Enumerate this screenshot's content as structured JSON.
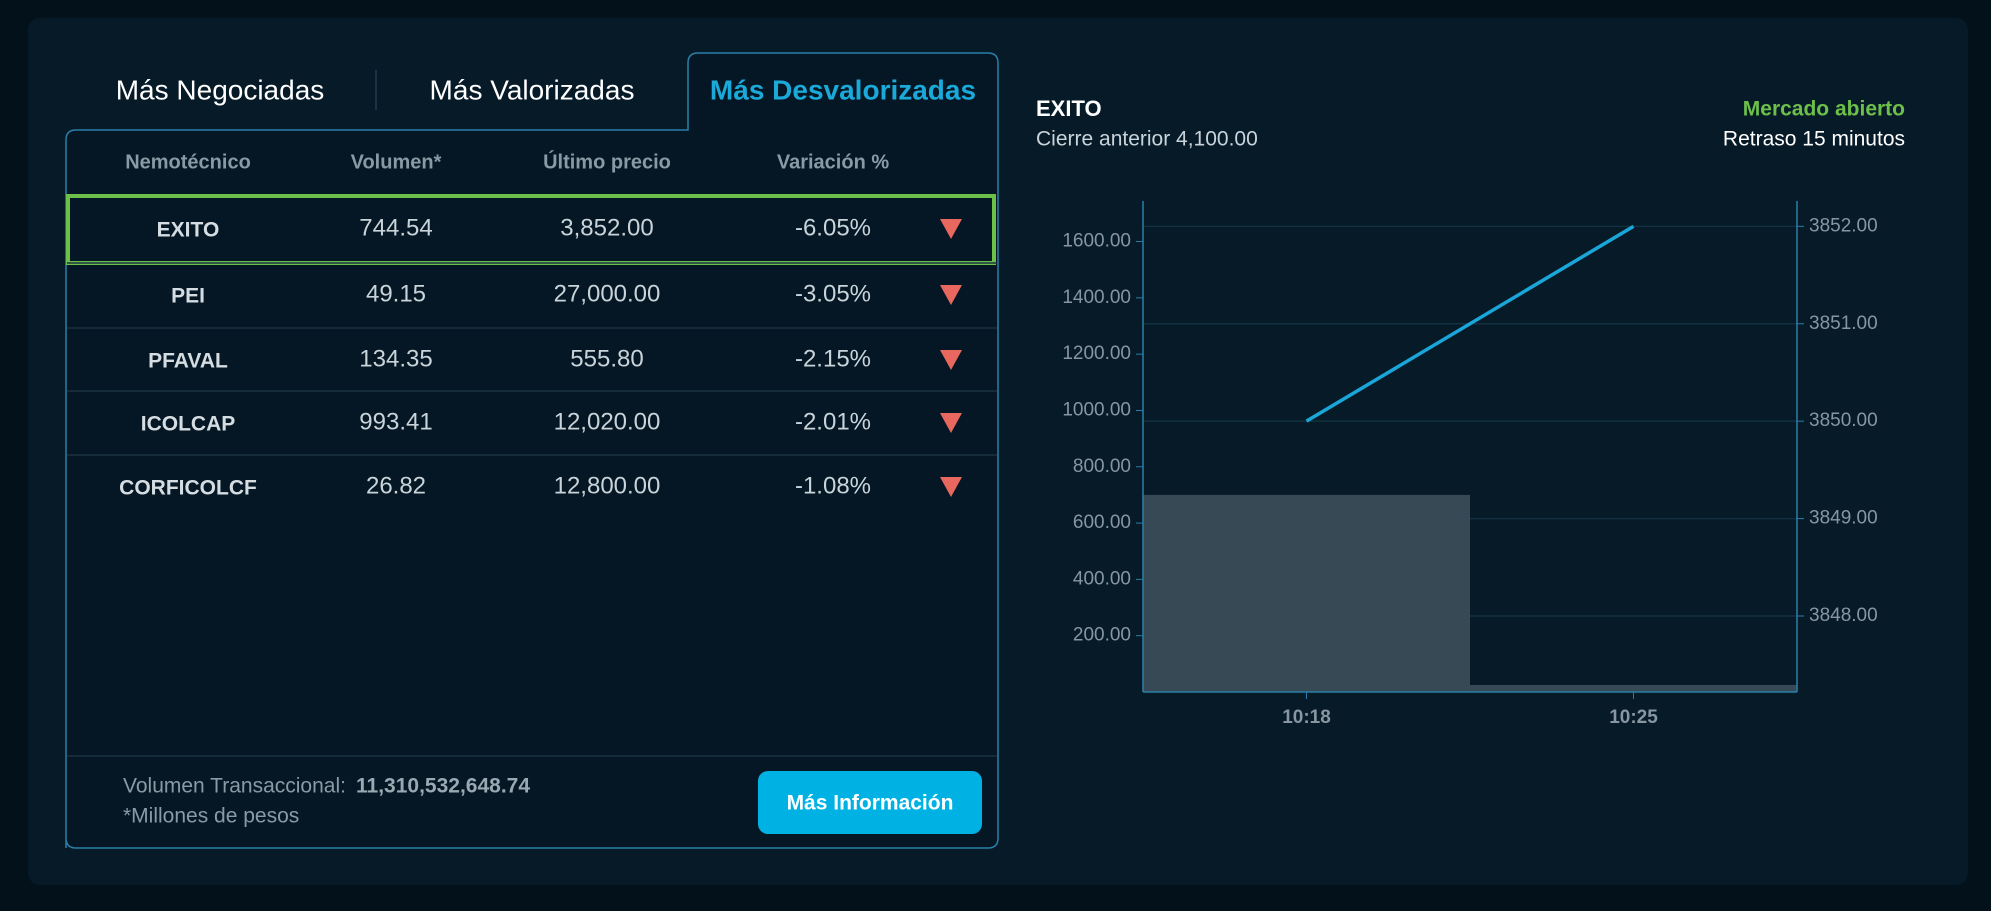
{
  "tabs": [
    "Más Negociadas",
    "Más Valorizadas",
    "Más Desvalorizadas"
  ],
  "active_tab": 2,
  "table": {
    "columns": [
      "Nemotécnico",
      "Volumen*",
      "Último precio",
      "Variación %"
    ],
    "rows": [
      [
        "EXITO",
        "744.54",
        "3,852.00",
        "-6.05%"
      ],
      [
        "PEI",
        "49.15",
        "27,000.00",
        "-3.05%"
      ],
      [
        "PFAVAL",
        "134.35",
        "555.80",
        "-2.15%"
      ],
      [
        "ICOLCAP",
        "993.41",
        "12,020.00",
        "-2.01%"
      ],
      [
        "CORFICOLCF",
        "26.82",
        "12,800.00",
        "-1.08%"
      ]
    ],
    "selected_row": 0
  },
  "footer": {
    "volume_label": "Volumen Transaccional:",
    "volume_value": "11,310,532,648.74",
    "note": "*Millones de pesos",
    "button": "Más Información"
  },
  "chart_data": {
    "type": "bar",
    "title": "EXITO",
    "subtitle": "Cierre anterior 4,100.00",
    "status": "Mercado abierto",
    "delay": "Retraso 15 minutos",
    "categories": [
      "10:18",
      "10:25"
    ],
    "series": [
      {
        "type": "bar",
        "color": "#374955",
        "values": [
          700,
          25
        ]
      },
      {
        "type": "line",
        "axis": "y2",
        "color": "#1ba6d9",
        "values": [
          3850,
          3852
        ]
      }
    ],
    "ylim": [
      0,
      1744
    ],
    "yticks": [
      {
        "value": 200,
        "label": "200.00"
      },
      {
        "value": 400,
        "label": "400.00"
      },
      {
        "value": 600,
        "label": "600.00"
      },
      {
        "value": 800,
        "label": "800.00"
      },
      {
        "value": 1000,
        "label": "1000.00"
      },
      {
        "value": 1200,
        "label": "1200.00"
      },
      {
        "value": 1400,
        "label": "1400.00"
      },
      {
        "value": 1600,
        "label": "1600.00"
      }
    ],
    "y2lim": [
      3847.22,
      3852.26
    ],
    "y2ticks": [
      {
        "value": 3848,
        "label": "3848.00"
      },
      {
        "value": 3849,
        "label": "3849.00"
      },
      {
        "value": 3850,
        "label": "3850.00"
      },
      {
        "value": 3851,
        "label": "3851.00"
      },
      {
        "value": 3852,
        "label": "3852.00"
      }
    ],
    "grid": true
  }
}
